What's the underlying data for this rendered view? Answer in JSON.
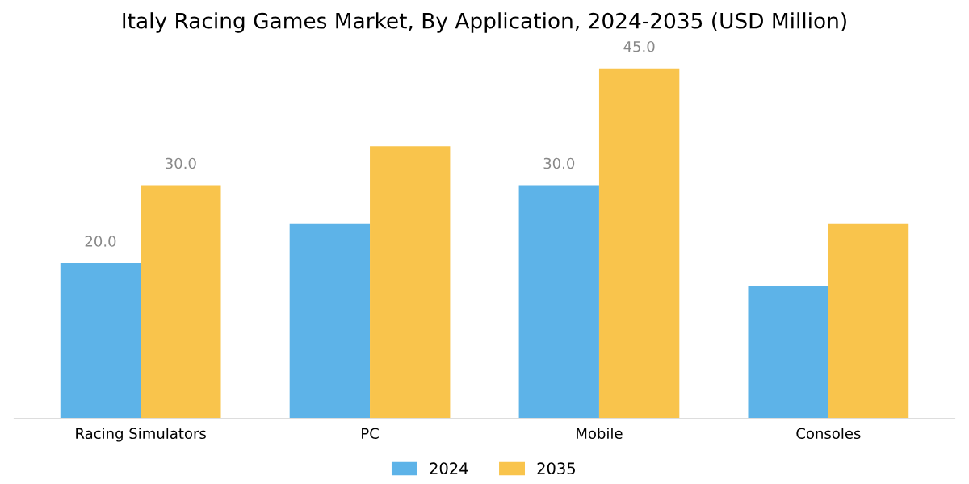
{
  "chart_data": {
    "type": "bar",
    "title": "Italy Racing Games Market, By Application, 2024-2035 (USD Million)",
    "categories": [
      "Racing Simulators",
      "PC",
      "Mobile",
      "Consoles"
    ],
    "series": [
      {
        "name": "2024",
        "color": "#5db3e8",
        "values": [
          20.0,
          25.0,
          30.0,
          17.0
        ],
        "value_labels": [
          "20.0",
          null,
          "30.0",
          null
        ]
      },
      {
        "name": "2035",
        "color": "#f9c44c",
        "values": [
          30.0,
          35.0,
          45.0,
          25.0
        ],
        "value_labels": [
          "30.0",
          null,
          "45.0",
          null
        ]
      }
    ],
    "tick_labels": "x",
    "grid": false,
    "legend": "bottom"
  }
}
